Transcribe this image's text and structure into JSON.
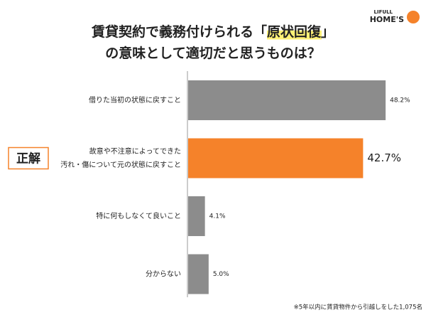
{
  "chart_data": {
    "type": "bar",
    "orientation": "horizontal",
    "title_lines": [
      [
        "賃貸契約で義務付けられる「",
        "原状回復",
        "」"
      ],
      [
        "の意味として適切だと思うものは？"
      ]
    ],
    "categories": [
      [
        "借りた当初の状態に戻すこと"
      ],
      [
        "故意や不注意によってできた",
        "汚れ・傷について元の状態に戻すこと"
      ],
      [
        "特に何もしなくて良いこと"
      ],
      [
        "分からない"
      ]
    ],
    "values": [
      48.2,
      42.7,
      4.1,
      5.0
    ],
    "value_labels": [
      "48.2%",
      "42.7%",
      "4.1%",
      "5.0%"
    ],
    "colors": [
      "#8c8c8c",
      "#f5822a",
      "#8c8c8c",
      "#8c8c8c"
    ],
    "highlight_index": 1,
    "badge": "正解",
    "note": "※5年以内に賃貸物件から引越しをした1,075名",
    "logo": [
      "LIFULL",
      "HOME'S"
    ]
  }
}
